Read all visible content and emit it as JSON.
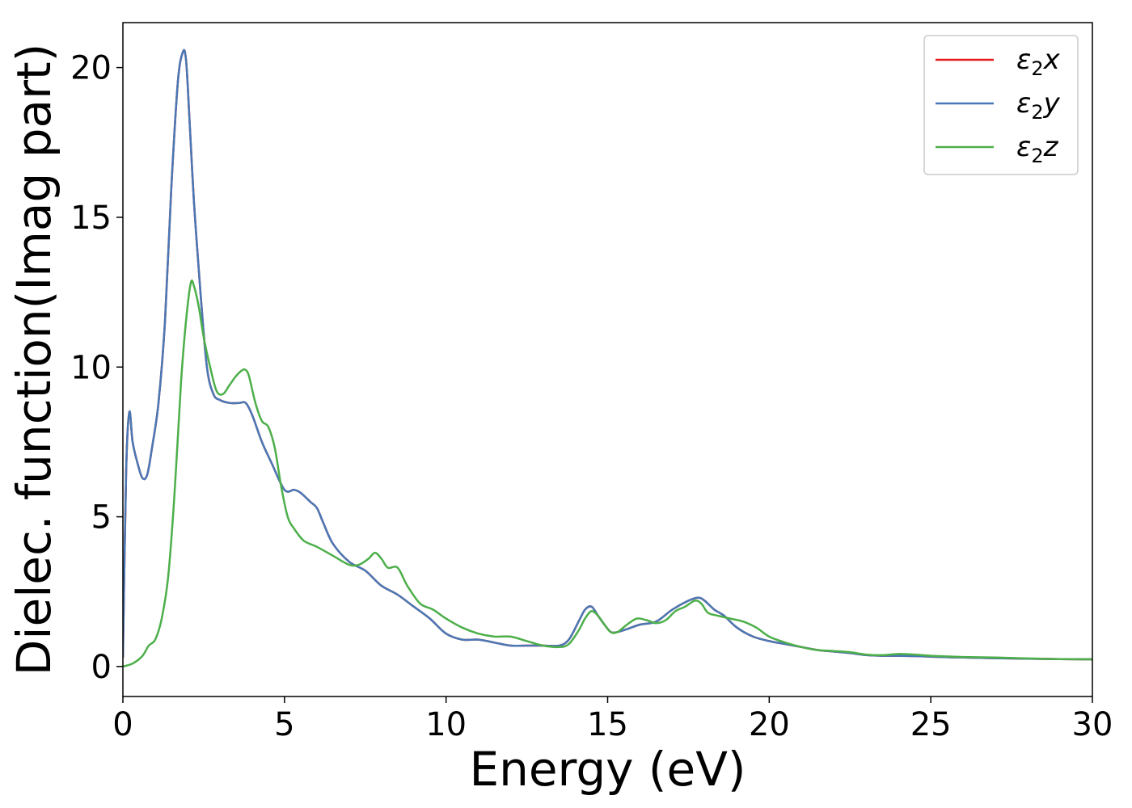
{
  "chart_data": {
    "type": "line",
    "title": "",
    "xlabel": "Energy (eV)",
    "ylabel": "Dielec. function(Imag part)",
    "xlim": [
      0,
      30
    ],
    "ylim": [
      -1,
      21.5
    ],
    "xticks": [
      0,
      5,
      10,
      15,
      20,
      25,
      30
    ],
    "yticks": [
      0,
      5,
      10,
      15,
      20
    ],
    "grid": false,
    "legend_position": "top-right",
    "series": [
      {
        "name": "ε2x",
        "legend_base": "ε",
        "legend_sub": "2",
        "legend_suffix": "x",
        "color": "#e41a1c",
        "x": [
          0,
          0.1,
          0.2,
          0.3,
          0.45,
          0.6,
          0.75,
          0.9,
          1.1,
          1.3,
          1.5,
          1.7,
          1.85,
          1.95,
          2.05,
          2.2,
          2.4,
          2.6,
          2.8,
          3.0,
          3.3,
          3.6,
          3.8,
          4.0,
          4.3,
          4.6,
          5.0,
          5.3,
          5.5,
          5.8,
          6.0,
          6.2,
          6.5,
          7.0,
          7.5,
          8.0,
          8.5,
          9.0,
          9.5,
          10.0,
          10.5,
          11.0,
          11.5,
          12.0,
          12.5,
          13.0,
          13.5,
          13.8,
          14.1,
          14.3,
          14.5,
          14.7,
          14.9,
          15.1,
          15.3,
          15.6,
          16.0,
          16.5,
          17.0,
          17.5,
          17.8,
          18.0,
          18.3,
          18.6,
          19.0,
          19.5,
          20.0,
          20.5,
          21.0,
          21.5,
          22.0,
          22.5,
          23.0,
          23.5,
          24.0,
          24.5,
          25.0,
          26.0,
          27.0,
          28.0,
          29.0,
          30.0
        ],
        "values": [
          0.3,
          6.5,
          8.5,
          7.5,
          6.8,
          6.3,
          6.4,
          7.3,
          8.8,
          11.5,
          16.0,
          19.5,
          20.5,
          20.3,
          18.5,
          15.5,
          12.5,
          10.0,
          9.1,
          8.9,
          8.8,
          8.8,
          8.8,
          8.4,
          7.5,
          6.8,
          5.9,
          5.9,
          5.8,
          5.5,
          5.3,
          4.8,
          4.1,
          3.5,
          3.2,
          2.7,
          2.4,
          2.0,
          1.6,
          1.1,
          0.9,
          0.9,
          0.8,
          0.7,
          0.7,
          0.7,
          0.7,
          0.9,
          1.5,
          1.9,
          2.0,
          1.7,
          1.4,
          1.15,
          1.15,
          1.25,
          1.4,
          1.5,
          1.9,
          2.2,
          2.3,
          2.2,
          1.9,
          1.7,
          1.3,
          1.0,
          0.85,
          0.75,
          0.65,
          0.55,
          0.5,
          0.45,
          0.38,
          0.36,
          0.36,
          0.35,
          0.33,
          0.3,
          0.28,
          0.26,
          0.25,
          0.24
        ]
      },
      {
        "name": "ε2y",
        "legend_base": "ε",
        "legend_sub": "2",
        "legend_suffix": "y",
        "color": "#4878b5",
        "x": [
          0,
          0.1,
          0.2,
          0.3,
          0.45,
          0.6,
          0.75,
          0.9,
          1.1,
          1.3,
          1.5,
          1.7,
          1.85,
          1.95,
          2.05,
          2.2,
          2.4,
          2.6,
          2.8,
          3.0,
          3.3,
          3.6,
          3.8,
          4.0,
          4.3,
          4.6,
          5.0,
          5.3,
          5.5,
          5.8,
          6.0,
          6.2,
          6.5,
          7.0,
          7.5,
          8.0,
          8.5,
          9.0,
          9.5,
          10.0,
          10.5,
          11.0,
          11.5,
          12.0,
          12.5,
          13.0,
          13.5,
          13.8,
          14.1,
          14.3,
          14.5,
          14.7,
          14.9,
          15.1,
          15.3,
          15.6,
          16.0,
          16.5,
          17.0,
          17.5,
          17.8,
          18.0,
          18.3,
          18.6,
          19.0,
          19.5,
          20.0,
          20.5,
          21.0,
          21.5,
          22.0,
          22.5,
          23.0,
          23.5,
          24.0,
          24.5,
          25.0,
          26.0,
          27.0,
          28.0,
          29.0,
          30.0
        ],
        "values": [
          0.3,
          6.5,
          8.5,
          7.5,
          6.8,
          6.3,
          6.4,
          7.3,
          8.8,
          11.5,
          16.0,
          19.5,
          20.5,
          20.3,
          18.5,
          15.5,
          12.5,
          10.0,
          9.1,
          8.9,
          8.8,
          8.8,
          8.8,
          8.4,
          7.5,
          6.8,
          5.9,
          5.9,
          5.8,
          5.5,
          5.3,
          4.8,
          4.1,
          3.5,
          3.2,
          2.7,
          2.4,
          2.0,
          1.6,
          1.1,
          0.9,
          0.9,
          0.8,
          0.7,
          0.7,
          0.7,
          0.7,
          0.9,
          1.5,
          1.9,
          2.0,
          1.7,
          1.4,
          1.15,
          1.15,
          1.25,
          1.4,
          1.5,
          1.9,
          2.2,
          2.3,
          2.2,
          1.9,
          1.7,
          1.3,
          1.0,
          0.85,
          0.75,
          0.65,
          0.55,
          0.5,
          0.45,
          0.38,
          0.36,
          0.36,
          0.35,
          0.33,
          0.3,
          0.28,
          0.26,
          0.25,
          0.24
        ]
      },
      {
        "name": "ε2z",
        "legend_base": "ε",
        "legend_sub": "2",
        "legend_suffix": "z",
        "color": "#4daf4a",
        "x": [
          0,
          0.3,
          0.6,
          0.8,
          1.0,
          1.2,
          1.4,
          1.6,
          1.8,
          1.95,
          2.1,
          2.2,
          2.35,
          2.5,
          2.7,
          2.9,
          3.1,
          3.3,
          3.5,
          3.7,
          3.8,
          3.9,
          4.1,
          4.3,
          4.5,
          4.7,
          4.9,
          5.1,
          5.3,
          5.6,
          6.0,
          6.5,
          7.0,
          7.3,
          7.6,
          7.8,
          8.0,
          8.2,
          8.5,
          8.8,
          9.2,
          9.6,
          10.0,
          10.5,
          11.0,
          11.5,
          12.0,
          12.5,
          13.0,
          13.5,
          13.8,
          14.1,
          14.3,
          14.5,
          14.7,
          14.9,
          15.1,
          15.3,
          15.6,
          15.9,
          16.2,
          16.5,
          16.8,
          17.1,
          17.4,
          17.7,
          17.9,
          18.1,
          18.4,
          18.8,
          19.2,
          19.6,
          20.0,
          20.5,
          21.0,
          21.5,
          22.0,
          22.5,
          23.0,
          23.5,
          24.0,
          24.5,
          25.0,
          26.0,
          27.0,
          28.0,
          29.0,
          30.0
        ],
        "values": [
          0.0,
          0.1,
          0.35,
          0.7,
          0.9,
          1.6,
          3.0,
          5.8,
          9.5,
          11.5,
          12.8,
          12.7,
          12.0,
          11.0,
          10.0,
          9.2,
          9.1,
          9.4,
          9.7,
          9.9,
          9.9,
          9.7,
          8.8,
          8.2,
          8.0,
          7.3,
          6.0,
          5.0,
          4.6,
          4.2,
          4.0,
          3.7,
          3.4,
          3.4,
          3.6,
          3.8,
          3.6,
          3.3,
          3.3,
          2.7,
          2.1,
          1.9,
          1.6,
          1.3,
          1.1,
          1.0,
          1.0,
          0.85,
          0.7,
          0.65,
          0.75,
          1.2,
          1.6,
          1.85,
          1.7,
          1.4,
          1.15,
          1.15,
          1.4,
          1.6,
          1.55,
          1.45,
          1.55,
          1.85,
          2.0,
          2.2,
          2.1,
          1.8,
          1.7,
          1.6,
          1.5,
          1.3,
          1.0,
          0.8,
          0.65,
          0.55,
          0.52,
          0.48,
          0.4,
          0.38,
          0.42,
          0.4,
          0.36,
          0.32,
          0.3,
          0.27,
          0.25,
          0.24
        ]
      }
    ]
  }
}
